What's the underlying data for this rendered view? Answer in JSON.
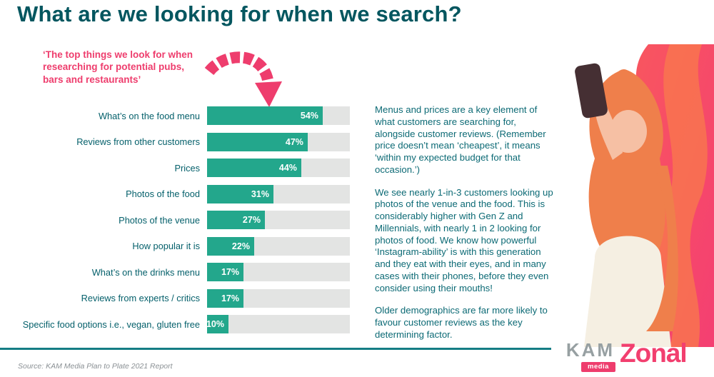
{
  "title": "What are we looking for when we search?",
  "annotation": "‘The top things we look for when researching for potential pubs, bars and restaurants’",
  "chart_data": {
    "type": "bar",
    "orientation": "horizontal",
    "title": "",
    "categories": [
      "What’s on the food menu",
      "Reviews from other customers",
      "Prices",
      "Photos of the food",
      "Photos of the venue",
      "How popular it is",
      "What’s on the drinks menu",
      "Reviews from experts / critics",
      "Specific food options i.e., vegan, gluten free"
    ],
    "values": [
      54,
      47,
      44,
      31,
      27,
      22,
      17,
      17,
      10
    ],
    "value_suffix": "%",
    "xlim": [
      0,
      66.7
    ],
    "grid": false,
    "legend": false,
    "data_label_position": "inside-end",
    "bar_color": "#23a78c",
    "track_color": "#e3e4e3"
  },
  "commentary": {
    "paragraphs": [
      "Menus and prices are a key element of what customers are searching for, alongside customer reviews. (Remember price doesn’t mean ‘cheapest’, it means ‘within my expected budget for that occasion.’)",
      "We see nearly 1-in-3 customers looking up photos of the venue and the food. This is considerably higher with Gen Z and Millennials, with nearly 1 in 2 looking for photos of food. We know how powerful ‘Instagram-ability’ is with this generation and they eat with their eyes, and in many cases with their phones, before they even consider using their mouths!",
      "Older demographics are far more likely to favour customer reviews as the key determining factor."
    ]
  },
  "source": "Source: KAM Media Plan to Plate 2021 Report",
  "footer_logos": {
    "kam": "KAM",
    "kam_media": "media",
    "zonal": "Zonal"
  },
  "colors": {
    "title_teal": "#03565f",
    "accent_pink": "#ee3d6d",
    "bar_teal": "#23a78c",
    "track_gray": "#e3e4e3",
    "body_teal": "#0c6a75",
    "divider_teal": "#157d85"
  },
  "icons": {
    "arrow": "curved-arrow-down"
  }
}
